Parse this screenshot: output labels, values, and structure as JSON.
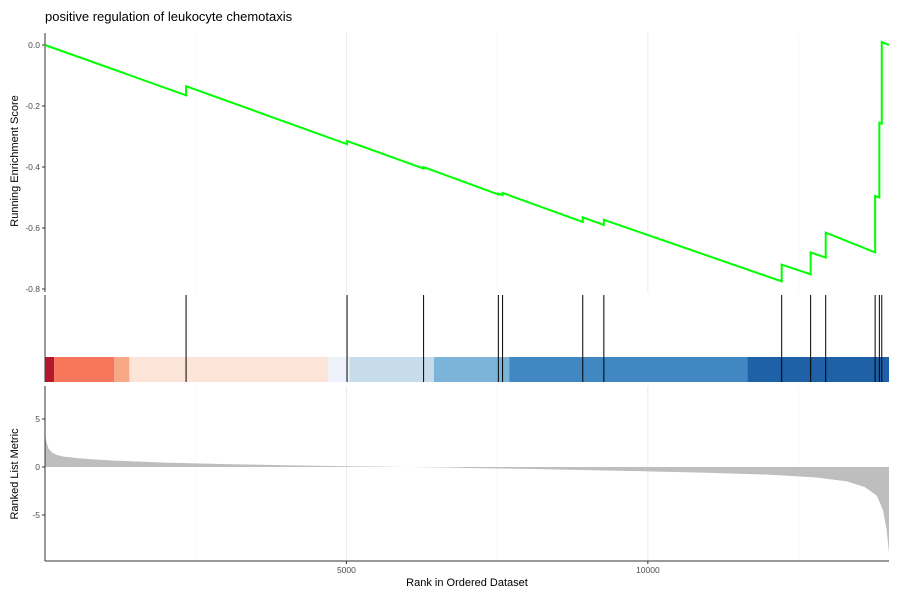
{
  "chart_data": {
    "type": "line",
    "title": "positive regulation of leukocyte chemotaxis",
    "xlabel": "Rank in Ordered Dataset",
    "grid": true,
    "xlim": [
      0,
      14000
    ],
    "x_ticks": [
      5000,
      10000
    ],
    "x_tick_labels": [
      "5000",
      "10000"
    ],
    "panels": {
      "running_score": {
        "ylabel": "Running Enrichment Score",
        "ylim": [
          -0.8,
          0.0
        ],
        "y_ticks": [
          0.0,
          -0.2,
          -0.4,
          -0.6,
          -0.8
        ],
        "y_tick_labels": [
          "0.0",
          "-0.2",
          "-0.4",
          "-0.6",
          "-0.8"
        ],
        "line_color": "#00ff00",
        "series": [
          {
            "x": [
              0,
              2340,
              2340,
              5010,
              5010,
              6280,
              6280,
              7520,
              7520,
              7590,
              7590,
              8920,
              8920,
              9270,
              9270,
              12220,
              12220,
              12700,
              12700,
              12950,
              12950,
              13770,
              13770,
              13840,
              13840,
              13880,
              13880,
              13900,
              13900,
              14000
            ],
            "y": [
              0.0,
              -0.165,
              -0.135,
              -0.325,
              -0.315,
              -0.405,
              -0.4,
              -0.49,
              -0.487,
              -0.492,
              -0.485,
              -0.58,
              -0.565,
              -0.59,
              -0.573,
              -0.775,
              -0.72,
              -0.752,
              -0.68,
              -0.697,
              -0.615,
              -0.68,
              -0.495,
              -0.5,
              -0.255,
              -0.258,
              0.01,
              0.008,
              0.008,
              0.0
            ]
          }
        ]
      },
      "hit_positions": [
        2340,
        5010,
        6280,
        7520,
        7590,
        8920,
        9270,
        12220,
        12700,
        12950,
        13770,
        13840,
        13880
      ],
      "rank_heatmap": {
        "bands": [
          {
            "from": 0,
            "to": 150,
            "color": "#b2182b"
          },
          {
            "from": 150,
            "to": 1150,
            "color": "#f6765c"
          },
          {
            "from": 1150,
            "to": 1400,
            "color": "#f9a887"
          },
          {
            "from": 1400,
            "to": 4700,
            "color": "#fde4d9"
          },
          {
            "from": 4700,
            "to": 5050,
            "color": "#eef2fa"
          },
          {
            "from": 5050,
            "to": 6450,
            "color": "#c7dcea"
          },
          {
            "from": 6450,
            "to": 7700,
            "color": "#7cb4d9"
          },
          {
            "from": 7700,
            "to": 11650,
            "color": "#4188c2"
          },
          {
            "from": 11650,
            "to": 14000,
            "color": "#1f61a6"
          }
        ]
      },
      "ranked_metric": {
        "ylabel": "Ranked List Metric",
        "ylim": [
          -9,
          8
        ],
        "y_ticks": [
          5,
          0,
          -5
        ],
        "y_tick_labels": [
          "5",
          "0",
          "-5"
        ],
        "fill_color": "#bebebe",
        "series": [
          {
            "x": [
              0,
              20,
              60,
              120,
              200,
              300,
              500,
              800,
              1200,
              2000,
              3000,
              4000,
              5000,
              6000,
              6700,
              7000,
              8000,
              9000,
              10000,
              11000,
              12000,
              12800,
              13300,
              13600,
              13800,
              13900,
              13960,
              14000
            ],
            "y": [
              3.6,
              2.7,
              1.9,
              1.5,
              1.25,
              1.1,
              0.95,
              0.8,
              0.65,
              0.45,
              0.3,
              0.18,
              0.08,
              0.0,
              -0.05,
              -0.1,
              -0.2,
              -0.32,
              -0.45,
              -0.6,
              -0.8,
              -1.1,
              -1.5,
              -2.1,
              -3.0,
              -4.5,
              -6.5,
              -9.0
            ]
          }
        ]
      }
    }
  }
}
